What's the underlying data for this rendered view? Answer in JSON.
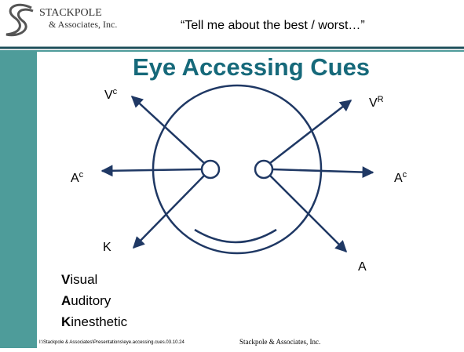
{
  "header": {
    "logo_name": "STACKPOLE",
    "logo_sub": "& Associates, Inc.",
    "quote": "“Tell me about the best / worst…”"
  },
  "title": "Eye Accessing Cues",
  "labels": [
    {
      "main": "V",
      "sup": "c"
    },
    {
      "main": "V",
      "sup": "R"
    },
    {
      "main": "A",
      "sup": "c"
    },
    {
      "main": "A",
      "sup": "c"
    },
    {
      "main": "K"
    },
    {
      "main": "A"
    }
  ],
  "legend": [
    {
      "initial": "V",
      "rest": "isual"
    },
    {
      "initial": "A",
      "rest": "uditory"
    },
    {
      "initial": "K",
      "rest": "inesthetic"
    }
  ],
  "footer": {
    "path": "I:\\Stackpole & Associates\\Presentations\\eye.accessing.cues.03.10.24",
    "company": "Stackpole & Associates, Inc."
  }
}
